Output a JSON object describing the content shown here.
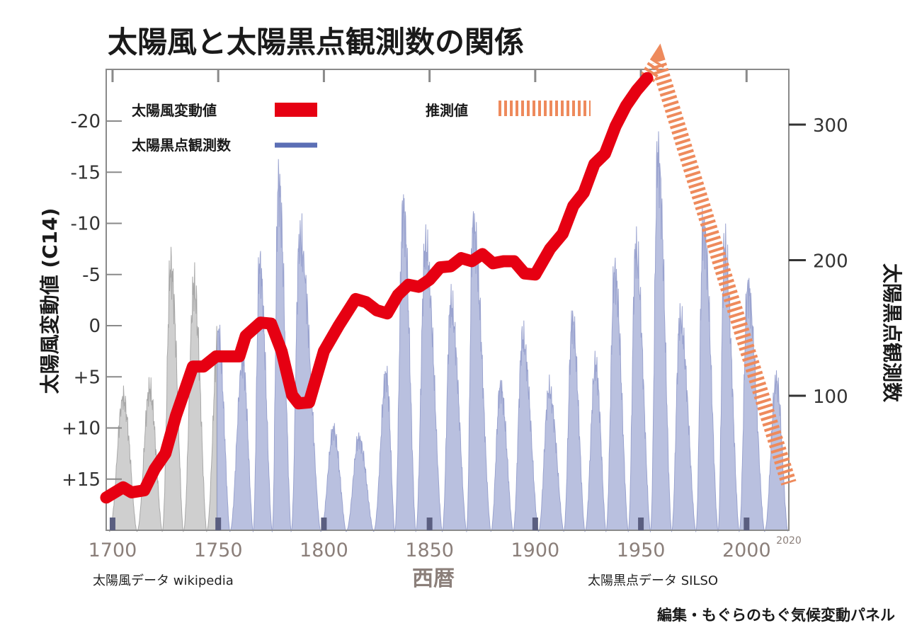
{
  "chart_data": {
    "type": "line",
    "title": "太陽風と太陽黒点観測数の関係",
    "xlabel": "西暦",
    "ylabel_left": "太陽風変動値 (C14)",
    "ylabel_right": "太陽黒点観測数",
    "xlim": [
      1697,
      2020
    ],
    "ylim_left": [
      20,
      -25
    ],
    "ylim_right": [
      0,
      335
    ],
    "x_ticks": [
      "1700",
      "1750",
      "1800",
      "1850",
      "1900",
      "1950",
      "2000"
    ],
    "x_tick_values": [
      1700,
      1750,
      1800,
      1850,
      1900,
      1950,
      2000
    ],
    "x_end_label": "2020",
    "left_ticks": [
      "-20",
      "-15",
      "-10",
      "-5",
      "0",
      "+5",
      "+10",
      "+15"
    ],
    "left_tick_values": [
      -20,
      -15,
      -10,
      -5,
      0,
      5,
      10,
      15
    ],
    "right_ticks": [
      "300",
      "200",
      "100"
    ],
    "right_tick_values": [
      300,
      200,
      100
    ],
    "legend": {
      "solar_wind": "太陽風変動値",
      "sunspots": "太陽黒点観測数",
      "estimate": "推測値"
    },
    "colors": {
      "solar_wind": "#e60012",
      "estimate": "#ee8a5c",
      "sunspots_fill": "#b9c0df",
      "sunspots_legend": "#5b6fb5",
      "early_sunspots_fill": "#cfcfcf"
    },
    "series": [
      {
        "name": "太陽風変動値",
        "x": [
          1697,
          1705,
          1709,
          1715,
          1720,
          1725,
          1730,
          1738,
          1743,
          1749,
          1760,
          1763,
          1770,
          1775,
          1780,
          1785,
          1788,
          1793,
          1800,
          1807,
          1815,
          1820,
          1825,
          1830,
          1835,
          1840,
          1845,
          1850,
          1855,
          1860,
          1865,
          1870,
          1875,
          1880,
          1885,
          1890,
          1895,
          1900,
          1907,
          1913,
          1918,
          1923,
          1928,
          1933,
          1938,
          1943,
          1948,
          1953
        ],
        "y": [
          16.8,
          15.8,
          16.3,
          16.1,
          14,
          12.5,
          8.8,
          4,
          4,
          3,
          3,
          1,
          -0.3,
          -0.2,
          2.5,
          6.8,
          7.6,
          7.5,
          2.5,
          0,
          -2.6,
          -2.3,
          -1.5,
          -1.2,
          -3,
          -4,
          -3.8,
          -4.5,
          -5.7,
          -5.8,
          -6.6,
          -6.3,
          -7,
          -6.1,
          -6.3,
          -6.3,
          -5.1,
          -5,
          -7.5,
          -9,
          -11.7,
          -13,
          -15.8,
          -16.8,
          -19.5,
          -21.5,
          -23,
          -24.2
        ]
      },
      {
        "name": "推測値",
        "x": [
          1953,
          1958,
          2020
        ],
        "y": [
          -24.2,
          -25.8,
          15.4
        ]
      }
    ],
    "sunspot_cycle_peaks": [
      {
        "x": 1705.0,
        "v": 98
      },
      {
        "x": 1717.5,
        "v": 104
      },
      {
        "x": 1727.5,
        "v": 194
      },
      {
        "x": 1738.5,
        "v": 180
      },
      {
        "x": 1750.0,
        "v": 145
      },
      {
        "x": 1761.5,
        "v": 125
      },
      {
        "x": 1769.5,
        "v": 195
      },
      {
        "x": 1778.5,
        "v": 256
      },
      {
        "x": 1788.5,
        "v": 215
      },
      {
        "x": 1804.5,
        "v": 74
      },
      {
        "x": 1816.5,
        "v": 68
      },
      {
        "x": 1829.5,
        "v": 115
      },
      {
        "x": 1837.5,
        "v": 236
      },
      {
        "x": 1848.0,
        "v": 209
      },
      {
        "x": 1860.0,
        "v": 167
      },
      {
        "x": 1870.5,
        "v": 224
      },
      {
        "x": 1883.5,
        "v": 106
      },
      {
        "x": 1894.0,
        "v": 142
      },
      {
        "x": 1906.5,
        "v": 104
      },
      {
        "x": 1917.5,
        "v": 154
      },
      {
        "x": 1928.5,
        "v": 122
      },
      {
        "x": 1937.5,
        "v": 190
      },
      {
        "x": 1947.5,
        "v": 206
      },
      {
        "x": 1958.0,
        "v": 276
      },
      {
        "x": 1968.5,
        "v": 156
      },
      {
        "x": 1979.5,
        "v": 225
      },
      {
        "x": 1989.5,
        "v": 209
      },
      {
        "x": 2000.5,
        "v": 178
      },
      {
        "x": 2014.0,
        "v": 110
      }
    ],
    "sunspot_cycle_minima": [
      1698.5,
      1711.5,
      1723.5,
      1733.5,
      1744.5,
      1755.5,
      1766.5,
      1775.5,
      1784.5,
      1798.5,
      1810.5,
      1823.5,
      1833.5,
      1843.5,
      1856.0,
      1867.5,
      1879.0,
      1889.5,
      1901.5,
      1913.5,
      1923.5,
      1933.5,
      1944.0,
      1954.5,
      1964.5,
      1976.0,
      1986.5,
      1996.5,
      2008.5,
      2019.5
    ],
    "sources_left": "太陽風データ wikipedia",
    "sources_right": "太陽黒点データ SILSO"
  },
  "credit": "編集・もぐらのもぐ気候変動パネル"
}
